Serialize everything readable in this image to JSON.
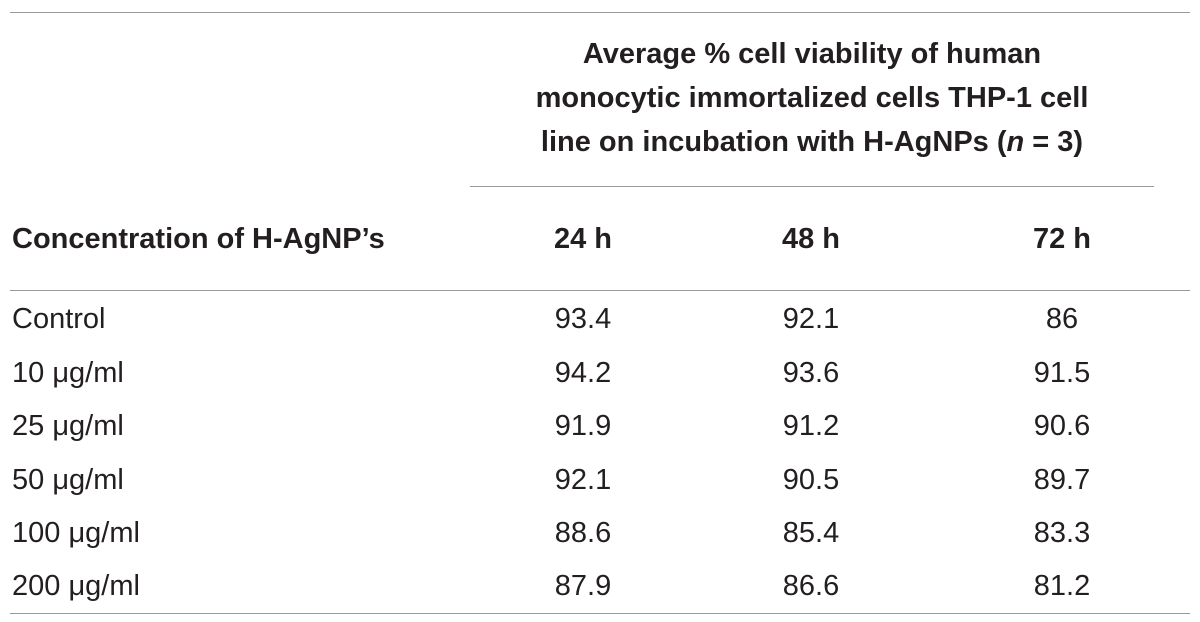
{
  "table": {
    "spanning_header": {
      "line1": "Average % cell viability of human",
      "line2": "monocytic immortalized cells THP-1 cell",
      "line3_before": "line on incubation with H-AgNPs (",
      "line3_italic": "n",
      "line3_after": " = 3)"
    },
    "columns": [
      "Concentration of H-AgNP’s",
      "24 h",
      "48 h",
      "72 h"
    ],
    "rows": [
      {
        "label": "Control",
        "values": [
          "93.4",
          "92.1",
          "86"
        ]
      },
      {
        "label": "10 μg/ml",
        "values": [
          "94.2",
          "93.6",
          "91.5"
        ]
      },
      {
        "label": "25 μg/ml",
        "values": [
          "91.9",
          "91.2",
          "90.6"
        ]
      },
      {
        "label": "50 μg/ml",
        "values": [
          "92.1",
          "90.5",
          "89.7"
        ]
      },
      {
        "label": "100 μg/ml",
        "values": [
          "88.6",
          "85.4",
          "83.3"
        ]
      },
      {
        "label": "200 μg/ml",
        "values": [
          "87.9",
          "86.6",
          "81.2"
        ]
      }
    ]
  }
}
